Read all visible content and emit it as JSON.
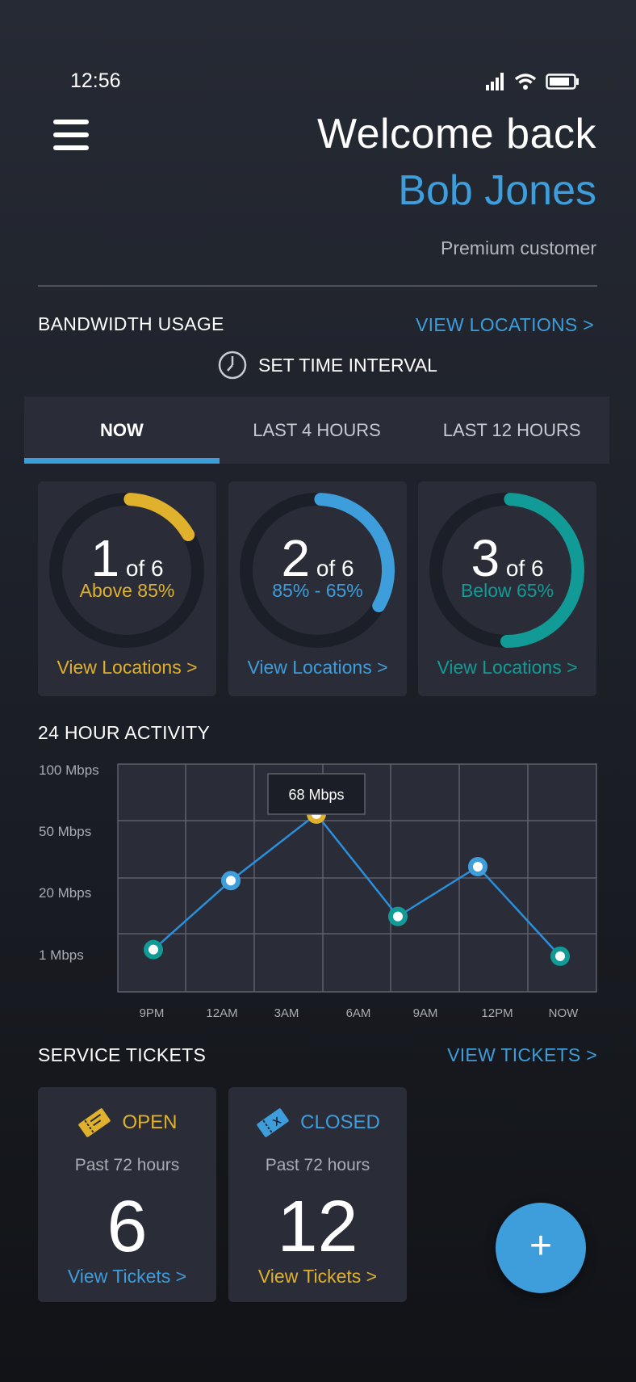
{
  "status_bar": {
    "time": "12:56"
  },
  "header": {
    "welcome": "Welcome back",
    "user_name": "Bob Jones",
    "tier": "Premium customer"
  },
  "bandwidth": {
    "title": "BANDWIDTH USAGE",
    "link": "VIEW LOCATIONS >",
    "interval_label": "SET TIME INTERVAL",
    "tabs": [
      {
        "label": "NOW",
        "active": true
      },
      {
        "label": "LAST 4 HOURS",
        "active": false
      },
      {
        "label": "LAST 12 HOURS",
        "active": false
      }
    ],
    "cards": [
      {
        "count": "1",
        "of": "of 6",
        "range": "Above 85%",
        "link": "View Locations >",
        "color": "#e0b12c",
        "fraction": 0.1667
      },
      {
        "count": "2",
        "of": "of 6",
        "range": "85% - 65%",
        "link": "View Locations >",
        "color": "#3e9ddb",
        "fraction": 0.3333
      },
      {
        "count": "3",
        "of": "of 6",
        "range": "Below 65%",
        "link": "View Locations >",
        "color": "#129b96",
        "fraction": 0.5
      }
    ]
  },
  "activity": {
    "title": "24 HOUR ACTIVITY",
    "tooltip": "68 Mbps"
  },
  "chart_data": {
    "type": "line",
    "title": "24 HOUR ACTIVITY",
    "y_tick_labels": [
      "100 Mbps",
      "50 Mbps",
      "20 Mbps",
      "1 Mbps"
    ],
    "y_ticks": [
      100,
      50,
      20,
      1
    ],
    "x_tick_labels": [
      "9PM",
      "12AM",
      "3AM",
      "6AM",
      "9AM",
      "12PM",
      "NOW"
    ],
    "points": [
      {
        "x": "9PM",
        "y": 4,
        "color": "#129b96"
      },
      {
        "x": "12AM",
        "y": 28,
        "color": "#3e9ddb"
      },
      {
        "x": "3AM",
        "y": 68,
        "color": "#e0b12c",
        "label": "68 Mbps"
      },
      {
        "x": "6AM-9AM",
        "y": 14,
        "color": "#129b96"
      },
      {
        "x": "12PM",
        "y": 35,
        "color": "#3e9ddb"
      },
      {
        "x": "NOW",
        "y": 2,
        "color": "#129b96"
      }
    ],
    "grid": true,
    "line_color": "#2a8fdb"
  },
  "tickets": {
    "title": "SERVICE TICKETS",
    "link": "VIEW TICKETS >",
    "cards": [
      {
        "status": "OPEN",
        "sub": "Past 72 hours",
        "count": "6",
        "link": "View Tickets >",
        "status_color": "#e0b12c",
        "link_color": "#3e9ddb"
      },
      {
        "status": "CLOSED",
        "sub": "Past 72 hours",
        "count": "12",
        "link": "View Tickets >",
        "status_color": "#3e9ddb",
        "link_color": "#e0b12c"
      }
    ]
  },
  "fab": {
    "label": "+"
  }
}
